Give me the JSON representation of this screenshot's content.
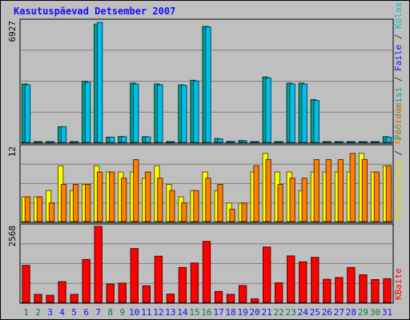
{
  "chart_data": {
    "type": "bar",
    "title": "Kasutuspäevad Detsember 2007",
    "categories": [
      "1",
      "2",
      "3",
      "4",
      "5",
      "6",
      "7",
      "8",
      "9",
      "10",
      "11",
      "12",
      "13",
      "14",
      "15",
      "16",
      "17",
      "18",
      "19",
      "20",
      "21",
      "22",
      "23",
      "24",
      "25",
      "26",
      "27",
      "28",
      "29",
      "30",
      "31"
    ],
    "weekend_days": [
      "1",
      "2",
      "8",
      "9",
      "15",
      "16",
      "22",
      "23",
      "29",
      "30"
    ],
    "panels": [
      {
        "id": "top",
        "ymax_label": "6927",
        "ylim": [
          0,
          6927
        ],
        "series": [
          {
            "name": "Külastused",
            "color": "#00a090",
            "values": [
              3350,
              40,
              40,
              900,
              40,
              3500,
              6780,
              300,
              340,
              3400,
              330,
              3350,
              40,
              3300,
              3560,
              6650,
              220,
              60,
              110,
              40,
              3750,
              40,
              3400,
              3400,
              2460,
              40,
              40,
              40,
              40,
              40,
              330
            ]
          },
          {
            "name": "Faile",
            "color": "#00c0f0",
            "values": [
              3300,
              40,
              40,
              900,
              40,
              3450,
              6880,
              300,
              330,
              3350,
              310,
              3300,
              40,
              3280,
              3520,
              6620,
              200,
              60,
              90,
              40,
              3700,
              40,
              3350,
              3350,
              2400,
              40,
              40,
              40,
              40,
              40,
              300
            ]
          },
          {
            "name": "Pöördumisi",
            "color": "#00a090",
            "values": []
          }
        ]
      },
      {
        "id": "middle",
        "ymax_label": "12",
        "ylim": [
          0,
          12
        ],
        "series": [
          {
            "name": "Külastajaid",
            "color": "#ffff00",
            "values": [
              4,
              4,
              5,
              9,
              5,
              6,
              9,
              8,
              8,
              8,
              7,
              9,
              6,
              4,
              5,
              8,
              5,
              3,
              3,
              8,
              11,
              8,
              8,
              5,
              8,
              8,
              8,
              8,
              11,
              8,
              9
            ]
          },
          {
            "name": "Arvuteid",
            "color": "#ff8000",
            "values": [
              4,
              4,
              3,
              6,
              6,
              6,
              8,
              8,
              7,
              10,
              8,
              7,
              5,
              3,
              5,
              7,
              6,
              2,
              3,
              9,
              10,
              6,
              7,
              7,
              10,
              10,
              10,
              11,
              10,
              8,
              9
            ]
          }
        ]
      },
      {
        "id": "bottom",
        "ymax_label": "2568",
        "ylim": [
          0,
          2568
        ],
        "series": [
          {
            "name": "KBaite",
            "color": "#ff0000",
            "values": [
              1250,
              270,
              240,
              700,
              270,
              1450,
              2568,
              620,
              650,
              1820,
              560,
              1560,
              280,
              1180,
              1330,
              2060,
              370,
              270,
              570,
              120,
              1870,
              660,
              1570,
              1370,
              1520,
              780,
              840,
              1180,
              930,
              770,
              800
            ]
          }
        ]
      }
    ],
    "legend": {
      "top": [
        {
          "label": "Pöördumisi",
          "color": "#00a090"
        },
        {
          "label": " / ",
          "color": "#303030"
        },
        {
          "label": "Faile",
          "color": "#1010ff"
        },
        {
          "label": " / ",
          "color": "#303030"
        },
        {
          "label": "Külastused",
          "color": "#00c0c0"
        }
      ],
      "middle": [
        {
          "label": "Külastajaid",
          "color": "#e0e000"
        },
        {
          "label": " / ",
          "color": "#303030"
        },
        {
          "label": "Arvuteid",
          "color": "#ff8000"
        }
      ],
      "bottom": [
        {
          "label": "KBaite",
          "color": "#ff0000"
        }
      ],
      "placement": "right-vertical"
    },
    "grid": true,
    "colors": {
      "background": "#bfbfbf",
      "grid": "#808080",
      "axis": "#000000",
      "title": "#1010ff",
      "weekday_label": "#1010ff",
      "weekend_label": "#008040"
    }
  }
}
